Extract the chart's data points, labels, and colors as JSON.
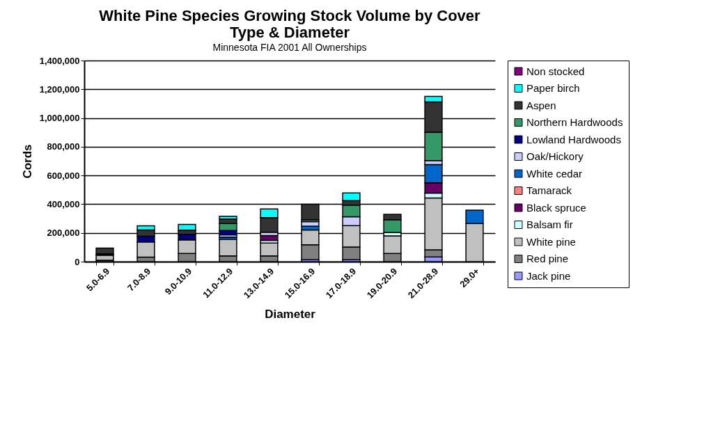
{
  "chart_data": {
    "type": "bar",
    "title": "White Pine Species Growing Stock Volume by Cover Type & Diameter",
    "subtitle": "Minnesota FIA 2001    All Ownerships",
    "xlabel": "Diameter",
    "ylabel": "Cords",
    "categories": [
      "5.0-6.9",
      "7.0-8.9",
      "9.0-10.9",
      "11.0-12.9",
      "13.0-14.9",
      "15.0-16.9",
      "17.0-18.9",
      "19.0-20.9",
      "21.0-28.9",
      "29.0+"
    ],
    "stacked": true,
    "series": [
      {
        "name": "Jack pine",
        "color": "#9999ff",
        "values": [
          null,
          null,
          null,
          null,
          null,
          13000,
          13000,
          null,
          33000,
          null
        ]
      },
      {
        "name": "Red pine",
        "color": "#808080",
        "values": [
          10000,
          32000,
          57000,
          40000,
          40000,
          105000,
          89000,
          57000,
          49000,
          null
        ]
      },
      {
        "name": "White pine",
        "color": "#c0c0c0",
        "values": [
          35000,
          105000,
          94000,
          116000,
          89000,
          102000,
          149000,
          122000,
          361000,
          265000
        ]
      },
      {
        "name": "Balsam fir",
        "color": "#ccffff",
        "values": [
          null,
          null,
          null,
          null,
          19000,
          null,
          null,
          24000,
          34000,
          null
        ]
      },
      {
        "name": "Black spruce",
        "color": "#660066",
        "values": [
          null,
          null,
          null,
          null,
          34000,
          null,
          null,
          null,
          72000,
          null
        ]
      },
      {
        "name": "Tamarack",
        "color": "#ff8080",
        "values": [
          null,
          null,
          null,
          null,
          null,
          null,
          null,
          null,
          null,
          null
        ]
      },
      {
        "name": "White cedar",
        "color": "#0066cc",
        "values": [
          null,
          null,
          null,
          15000,
          null,
          27000,
          null,
          null,
          127000,
          93000
        ]
      },
      {
        "name": "Oak/Hickory",
        "color": "#ccccff",
        "values": [
          null,
          null,
          null,
          16000,
          23000,
          32000,
          61000,
          null,
          28000,
          null
        ]
      },
      {
        "name": "Lowland Hardwoods",
        "color": "#000080",
        "values": [
          10000,
          40000,
          39000,
          30000,
          null,
          null,
          null,
          null,
          null,
          null
        ]
      },
      {
        "name": "Northern Hardwoods",
        "color": "#339966",
        "values": [
          null,
          null,
          null,
          48000,
          null,
          13000,
          81000,
          89000,
          197000,
          null
        ]
      },
      {
        "name": "Aspen",
        "color": "#333333",
        "values": [
          40000,
          44000,
          29000,
          32000,
          102000,
          108000,
          32000,
          37000,
          211000,
          null
        ]
      },
      {
        "name": "Paper birch",
        "color": "#00ffff",
        "values": [
          null,
          29000,
          40000,
          19000,
          60000,
          null,
          53000,
          null,
          39000,
          null
        ]
      },
      {
        "name": "Non stocked",
        "color": "#800080",
        "values": [
          null,
          null,
          null,
          null,
          null,
          null,
          null,
          null,
          null,
          null
        ]
      }
    ],
    "ylim": [
      0,
      1400000
    ],
    "yticks": [
      0,
      {
        "value": 200000,
        "label": "200,000"
      },
      {
        "value": 400000,
        "label": "400,000"
      },
      {
        "value": 600000,
        "label": "600,000"
      },
      {
        "value": 800000,
        "label": "800,000"
      },
      {
        "value": 1000000,
        "label": "1,000,000"
      },
      {
        "value": 1200000,
        "label": "1,200,000"
      },
      {
        "value": 1400000,
        "label": "1,400,000"
      }
    ],
    "grid": "y",
    "legend": "right"
  }
}
